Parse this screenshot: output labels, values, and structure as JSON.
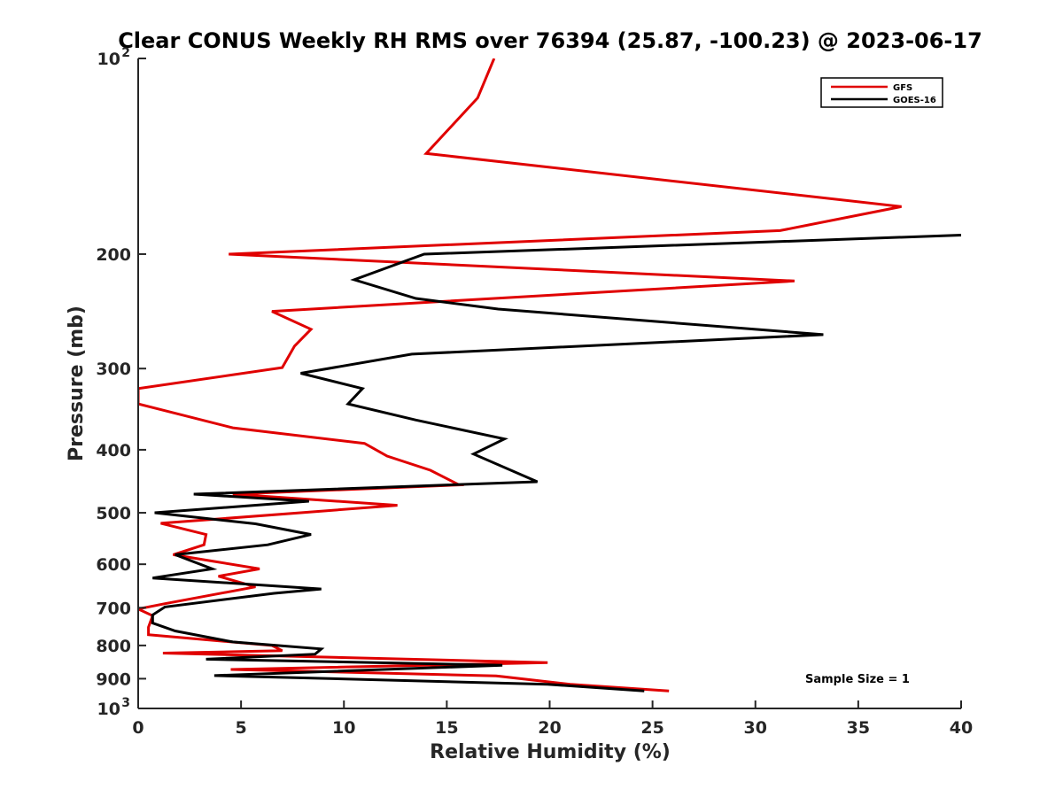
{
  "chart_data": {
    "type": "line",
    "title": "Clear CONUS Weekly RH RMS over 76394 (25.87, -100.23) @ 2023-06-17",
    "xlabel": "Relative Humidity (%)",
    "ylabel": "Pressure (mb)",
    "xlim": [
      0,
      40
    ],
    "ylim": [
      100,
      1000
    ],
    "yscale": "log",
    "y_reversed": true,
    "x_ticks": [
      "0",
      "5",
      "10",
      "15",
      "20",
      "25",
      "30",
      "35",
      "40"
    ],
    "y_ticks": [
      {
        "value": 100,
        "label": "10",
        "exp": "2"
      },
      {
        "value": 200,
        "label": "200"
      },
      {
        "value": 300,
        "label": "300"
      },
      {
        "value": 400,
        "label": "400"
      },
      {
        "value": 500,
        "label": "500"
      },
      {
        "value": 600,
        "label": "600"
      },
      {
        "value": 700,
        "label": "700"
      },
      {
        "value": 800,
        "label": "800"
      },
      {
        "value": 900,
        "label": "900"
      },
      {
        "value": 1000,
        "label": "10",
        "exp": "3"
      }
    ],
    "legend_position": "top-right",
    "annotation": "Sample Size = 1",
    "series": [
      {
        "name": "GFS",
        "color": "#e00000",
        "points": [
          [
            17.3,
            100
          ],
          [
            16.5,
            115
          ],
          [
            14.0,
            140
          ],
          [
            37.1,
            169
          ],
          [
            31.2,
            184
          ],
          [
            4.4,
            200
          ],
          [
            31.9,
            220
          ],
          [
            6.5,
            245
          ],
          [
            8.4,
            261
          ],
          [
            7.6,
            277
          ],
          [
            7.0,
            299
          ],
          [
            0.0,
            322
          ],
          [
            0.0,
            340
          ],
          [
            4.6,
            370
          ],
          [
            11.0,
            391
          ],
          [
            12.1,
            409
          ],
          [
            14.2,
            430
          ],
          [
            15.6,
            453
          ],
          [
            4.6,
            468
          ],
          [
            12.6,
            487
          ],
          [
            7.9,
            500
          ],
          [
            1.1,
            519
          ],
          [
            3.3,
            540
          ],
          [
            3.2,
            560
          ],
          [
            1.7,
            580
          ],
          [
            5.9,
            610
          ],
          [
            3.9,
            626
          ],
          [
            5.7,
            650
          ],
          [
            1.3,
            690
          ],
          [
            0.0,
            703
          ],
          [
            0.7,
            720
          ],
          [
            0.5,
            750
          ],
          [
            0.5,
            770
          ],
          [
            6.5,
            800
          ],
          [
            7.0,
            815
          ],
          [
            1.2,
            822
          ],
          [
            19.9,
            850
          ],
          [
            4.5,
            871
          ],
          [
            17.4,
            891
          ],
          [
            21.0,
            918
          ],
          [
            25.8,
            940
          ]
        ]
      },
      {
        "name": "GOES-16",
        "color": "#000000",
        "points": [
          [
            40.0,
            187
          ],
          [
            13.9,
            200
          ],
          [
            10.5,
            219
          ],
          [
            13.5,
            234
          ],
          [
            17.5,
            243
          ],
          [
            33.3,
            266
          ],
          [
            13.3,
            285
          ],
          [
            7.9,
            305
          ],
          [
            10.9,
            322
          ],
          [
            10.2,
            340
          ],
          [
            13.5,
            360
          ],
          [
            17.8,
            385
          ],
          [
            16.3,
            406
          ],
          [
            19.4,
            448
          ],
          [
            2.7,
            468
          ],
          [
            8.3,
            480
          ],
          [
            0.8,
            500
          ],
          [
            5.7,
            520
          ],
          [
            8.4,
            540
          ],
          [
            6.3,
            560
          ],
          [
            1.8,
            580
          ],
          [
            3.6,
            610
          ],
          [
            0.7,
            630
          ],
          [
            8.9,
            655
          ],
          [
            6.6,
            665
          ],
          [
            1.3,
            698
          ],
          [
            0.7,
            718
          ],
          [
            0.7,
            739
          ],
          [
            1.8,
            760
          ],
          [
            4.6,
            790
          ],
          [
            8.9,
            810
          ],
          [
            8.6,
            825
          ],
          [
            3.3,
            840
          ],
          [
            17.7,
            858
          ],
          [
            3.7,
            890
          ],
          [
            19.9,
            918
          ],
          [
            24.6,
            940
          ]
        ]
      }
    ]
  }
}
